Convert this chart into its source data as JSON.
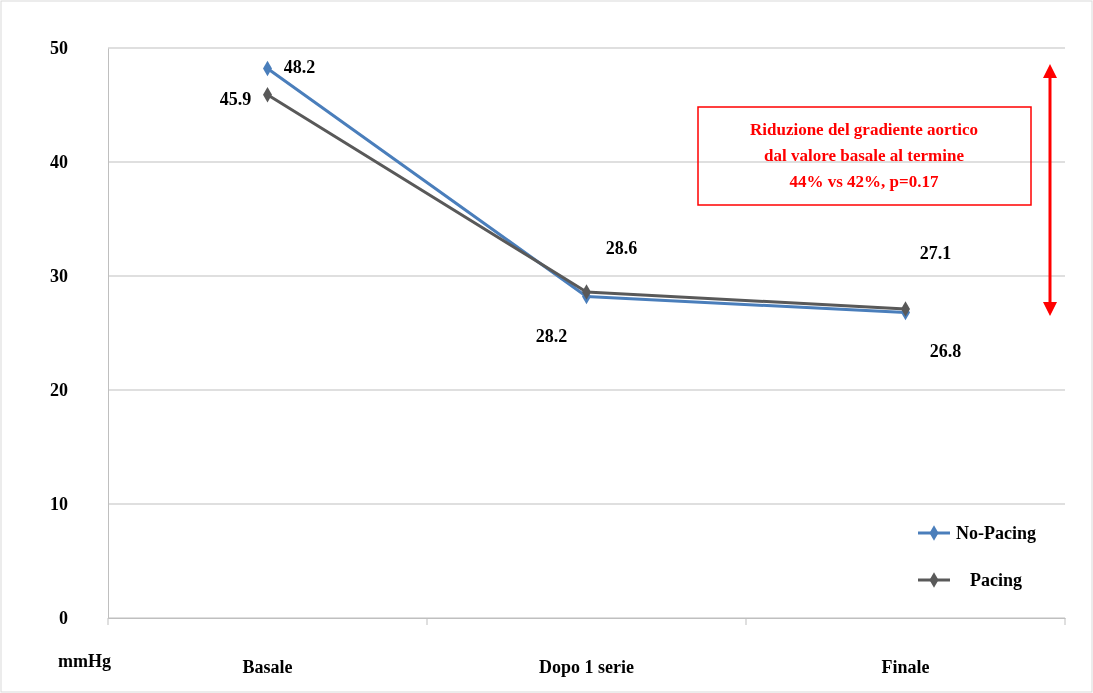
{
  "chart_data": {
    "type": "line",
    "ylabel": "mmHg",
    "categories": [
      "Basale",
      "Dopo 1 serie",
      "Finale"
    ],
    "series": [
      {
        "name": "No-Pacing",
        "color": "#4a7ebb",
        "values": [
          48.2,
          28.2,
          26.8
        ]
      },
      {
        "name": "Pacing",
        "color": "#595959",
        "values": [
          45.9,
          28.6,
          27.1
        ]
      }
    ],
    "ylim": [
      0,
      50
    ],
    "yticks": [
      0,
      10,
      20,
      30,
      40,
      50
    ],
    "grid": "y",
    "legend": "bottom right",
    "marker": "diamond",
    "line_style": "solid",
    "data_labels": true,
    "annotations": [
      "Riduzione del gradiente aortico\ndal valore basale al termine\n44% vs 42%, p=0.17"
    ]
  }
}
